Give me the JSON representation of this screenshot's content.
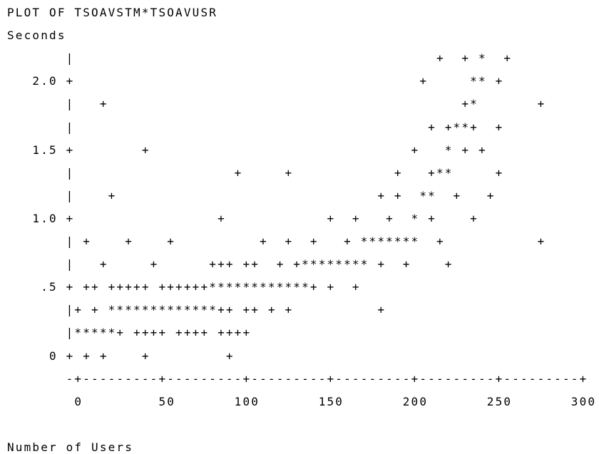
{
  "title": "PLOT OF TSOAVSTM*TSOAVUSR",
  "y_label": "Seconds",
  "rows": [
    "       |                                           +  + *  +",
    "   2.0 +                                         +     ** +",
    "       |   +                                          +*       +",
    "       |                                          + +**+  +",
    "   1.5 +        +                               +   * + +",
    "       |                   +     +            +   +**     +",
    "       |    +                               + +  **  +   +",
    "   1.0 +                 +            +  +   +  * +    +",
    "       | +    +    +          +  +  +   + *******  +           +",
    "       |   +     +      +++ ++  + +******** +  +    +",
    "    .5 + ++ +++++ ++++++************+ +  +",
    "       |+ + *************++ ++ + +          +",
    "       |*****+ ++++ ++++ ++++",
    "     0 + + +    +         +",
    "       -+---------+---------+---------+---------+---------+---------+",
    "        0         50       100       150       200       250       300"
  ],
  "x_label": "Number of Users"
}
